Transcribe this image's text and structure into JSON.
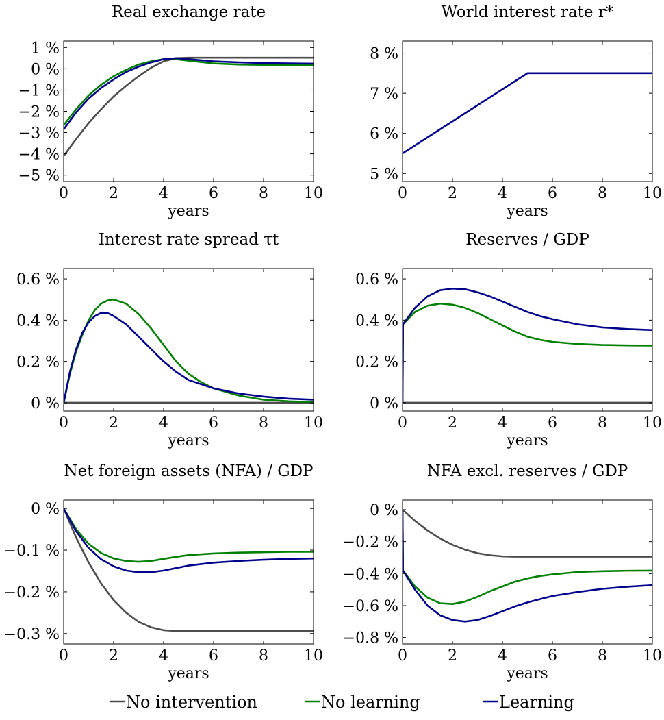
{
  "chart_data": [
    {
      "type": "line",
      "title": "Real exchange rate",
      "xlabel": "years",
      "ylabel": "",
      "xlim": [
        0,
        10
      ],
      "ylim": [
        -5.3,
        1.3
      ],
      "xticks": [
        "0",
        "2",
        "4",
        "6",
        "8",
        "10"
      ],
      "yticks": [
        {
          "v": 1,
          "label": "1 %"
        },
        {
          "v": 0,
          "label": "0 %"
        },
        {
          "v": -1,
          "label": "−1 %"
        },
        {
          "v": -2,
          "label": "−2 %"
        },
        {
          "v": -3,
          "label": "−3 %"
        },
        {
          "v": -4,
          "label": "−4 %"
        },
        {
          "v": -5,
          "label": "−5 %"
        }
      ],
      "series": [
        {
          "key": "none",
          "color": "#4d4d4d",
          "x": [
            0,
            0.5,
            1,
            1.5,
            2,
            2.5,
            3,
            3.5,
            4,
            4.5,
            5,
            6,
            7,
            8,
            9,
            10
          ],
          "y": [
            -4.1,
            -3.3,
            -2.55,
            -1.9,
            -1.3,
            -0.8,
            -0.35,
            0.05,
            0.35,
            0.5,
            0.52,
            0.52,
            0.52,
            0.52,
            0.52,
            0.52
          ]
        },
        {
          "key": "nolearn",
          "color": "#008000",
          "x": [
            0,
            0.5,
            1,
            1.5,
            2,
            2.5,
            3,
            3.5,
            4,
            4.5,
            5,
            6,
            7,
            8,
            9,
            10
          ],
          "y": [
            -2.65,
            -1.9,
            -1.25,
            -0.75,
            -0.35,
            -0.05,
            0.2,
            0.35,
            0.45,
            0.45,
            0.38,
            0.25,
            0.2,
            0.18,
            0.17,
            0.17
          ]
        },
        {
          "key": "learn",
          "color": "#00008b",
          "x": [
            0,
            0.5,
            1,
            1.5,
            2,
            2.5,
            3,
            3.5,
            4,
            4.5,
            5,
            6,
            7,
            8,
            9,
            10
          ],
          "y": [
            -2.85,
            -2.05,
            -1.4,
            -0.9,
            -0.5,
            -0.15,
            0.1,
            0.3,
            0.45,
            0.5,
            0.45,
            0.35,
            0.3,
            0.27,
            0.25,
            0.24
          ]
        }
      ]
    },
    {
      "type": "line",
      "title": "World interest rate r*",
      "xlabel": "years",
      "ylabel": "",
      "xlim": [
        0,
        10
      ],
      "ylim": [
        4.8,
        8.3
      ],
      "xticks": [
        "0",
        "2",
        "4",
        "6",
        "8",
        "10"
      ],
      "yticks": [
        {
          "v": 8,
          "label": "8 %"
        },
        {
          "v": 7,
          "label": "7 %"
        },
        {
          "v": 6,
          "label": "6 %"
        },
        {
          "v": 5,
          "label": "5 %"
        }
      ],
      "series": [
        {
          "key": "learn",
          "color": "#00008b",
          "x": [
            0,
            5,
            10
          ],
          "y": [
            5.5,
            7.5,
            7.5
          ]
        }
      ]
    },
    {
      "type": "line",
      "title": "Interest rate spread τt",
      "xlabel": "years",
      "ylabel": "",
      "xlim": [
        0,
        10
      ],
      "ylim": [
        -0.04,
        0.65
      ],
      "xticks": [
        "0",
        "2",
        "4",
        "6",
        "8",
        "10"
      ],
      "yticks": [
        {
          "v": 0.6,
          "label": "0.6 %"
        },
        {
          "v": 0.4,
          "label": "0.4 %"
        },
        {
          "v": 0.2,
          "label": "0.2 %"
        },
        {
          "v": 0,
          "label": "0 %"
        }
      ],
      "series": [
        {
          "key": "none",
          "color": "#4d4d4d",
          "x": [
            0,
            10
          ],
          "y": [
            0,
            0
          ]
        },
        {
          "key": "nolearn",
          "color": "#008000",
          "x": [
            0,
            0.25,
            0.5,
            0.75,
            1,
            1.25,
            1.5,
            1.75,
            2,
            2.5,
            3,
            3.5,
            4,
            4.5,
            5,
            5.5,
            6,
            7,
            8,
            9,
            10
          ],
          "y": [
            0,
            0.14,
            0.25,
            0.33,
            0.4,
            0.45,
            0.48,
            0.495,
            0.5,
            0.48,
            0.43,
            0.36,
            0.28,
            0.2,
            0.14,
            0.1,
            0.07,
            0.035,
            0.015,
            0.007,
            0.003
          ]
        },
        {
          "key": "learn",
          "color": "#00008b",
          "x": [
            0,
            0.25,
            0.5,
            0.75,
            1,
            1.25,
            1.5,
            1.75,
            2,
            2.5,
            3,
            3.5,
            4,
            4.5,
            5,
            5.5,
            6,
            7,
            8,
            9,
            10
          ],
          "y": [
            0,
            0.15,
            0.26,
            0.34,
            0.39,
            0.42,
            0.435,
            0.435,
            0.42,
            0.38,
            0.32,
            0.26,
            0.2,
            0.15,
            0.11,
            0.09,
            0.07,
            0.045,
            0.03,
            0.02,
            0.015
          ]
        }
      ]
    },
    {
      "type": "line",
      "title": "Reserves / GDP",
      "xlabel": "years",
      "ylabel": "",
      "xlim": [
        0,
        10
      ],
      "ylim": [
        -0.04,
        0.65
      ],
      "xticks": [
        "0",
        "2",
        "4",
        "6",
        "8",
        "10"
      ],
      "yticks": [
        {
          "v": 0.6,
          "label": "0.6 %"
        },
        {
          "v": 0.4,
          "label": "0.4 %"
        },
        {
          "v": 0.2,
          "label": "0.2 %"
        },
        {
          "v": 0,
          "label": "0 %"
        }
      ],
      "series": [
        {
          "key": "none",
          "color": "#4d4d4d",
          "x": [
            0,
            10
          ],
          "y": [
            0,
            0
          ]
        },
        {
          "key": "nolearn",
          "color": "#008000",
          "x": [
            0,
            0.02,
            0.5,
            1,
            1.5,
            2,
            2.5,
            3,
            3.5,
            4,
            4.5,
            5,
            5.5,
            6,
            7,
            8,
            9,
            10
          ],
          "y": [
            0,
            0.38,
            0.44,
            0.47,
            0.48,
            0.475,
            0.46,
            0.435,
            0.405,
            0.375,
            0.345,
            0.32,
            0.305,
            0.295,
            0.285,
            0.28,
            0.278,
            0.277
          ]
        },
        {
          "key": "learn",
          "color": "#00008b",
          "x": [
            0,
            0.02,
            0.5,
            1,
            1.5,
            2,
            2.5,
            3,
            3.5,
            4,
            4.5,
            5,
            5.5,
            6,
            7,
            8,
            9,
            10
          ],
          "y": [
            0,
            0.38,
            0.46,
            0.515,
            0.545,
            0.553,
            0.55,
            0.535,
            0.515,
            0.49,
            0.465,
            0.44,
            0.42,
            0.405,
            0.38,
            0.365,
            0.357,
            0.352
          ]
        }
      ]
    },
    {
      "type": "line",
      "title": "Net foreign assets (NFA) / GDP",
      "xlabel": "years",
      "ylabel": "",
      "xlim": [
        0,
        10
      ],
      "ylim": [
        -0.325,
        0.02
      ],
      "xticks": [
        "0",
        "2",
        "4",
        "6",
        "8",
        "10"
      ],
      "yticks": [
        {
          "v": 0,
          "label": "0 %"
        },
        {
          "v": -0.1,
          "label": "−0.1 %"
        },
        {
          "v": -0.2,
          "label": "−0.2 %"
        },
        {
          "v": -0.3,
          "label": "−0.3 %"
        }
      ],
      "series": [
        {
          "key": "none",
          "color": "#4d4d4d",
          "x": [
            0,
            0.5,
            1,
            1.5,
            2,
            2.5,
            3,
            3.5,
            4,
            4.5,
            5,
            6,
            7,
            8,
            9,
            10
          ],
          "y": [
            0,
            -0.07,
            -0.13,
            -0.18,
            -0.22,
            -0.25,
            -0.272,
            -0.285,
            -0.292,
            -0.294,
            -0.294,
            -0.294,
            -0.294,
            -0.294,
            -0.294,
            -0.294
          ]
        },
        {
          "key": "nolearn",
          "color": "#008000",
          "x": [
            0,
            0.5,
            1,
            1.5,
            2,
            2.5,
            3,
            3.5,
            4,
            4.5,
            5,
            6,
            7,
            8,
            9,
            10
          ],
          "y": [
            0,
            -0.05,
            -0.085,
            -0.107,
            -0.12,
            -0.126,
            -0.128,
            -0.126,
            -0.121,
            -0.116,
            -0.112,
            -0.108,
            -0.106,
            -0.105,
            -0.104,
            -0.104
          ]
        },
        {
          "key": "learn",
          "color": "#00008b",
          "x": [
            0,
            0.5,
            1,
            1.5,
            2,
            2.5,
            3,
            3.5,
            4,
            4.5,
            5,
            6,
            7,
            8,
            9,
            10
          ],
          "y": [
            0,
            -0.055,
            -0.095,
            -0.122,
            -0.139,
            -0.149,
            -0.153,
            -0.153,
            -0.149,
            -0.143,
            -0.137,
            -0.13,
            -0.126,
            -0.123,
            -0.121,
            -0.12
          ]
        }
      ]
    },
    {
      "type": "line",
      "title": "NFA excl. reserves / GDP",
      "xlabel": "years",
      "ylabel": "",
      "xlim": [
        0,
        10
      ],
      "ylim": [
        -0.84,
        0.06
      ],
      "xticks": [
        "0",
        "2",
        "4",
        "6",
        "8",
        "10"
      ],
      "yticks": [
        {
          "v": 0,
          "label": "0 %"
        },
        {
          "v": -0.2,
          "label": "−0.2 %"
        },
        {
          "v": -0.4,
          "label": "−0.4 %"
        },
        {
          "v": -0.6,
          "label": "−0.6 %"
        },
        {
          "v": -0.8,
          "label": "−0.8 %"
        }
      ],
      "series": [
        {
          "key": "none",
          "color": "#4d4d4d",
          "x": [
            0,
            0.5,
            1,
            1.5,
            2,
            2.5,
            3,
            3.5,
            4,
            4.5,
            5,
            6,
            7,
            8,
            9,
            10
          ],
          "y": [
            0,
            -0.07,
            -0.13,
            -0.18,
            -0.22,
            -0.25,
            -0.272,
            -0.285,
            -0.292,
            -0.294,
            -0.294,
            -0.294,
            -0.294,
            -0.294,
            -0.294,
            -0.294
          ]
        },
        {
          "key": "nolearn",
          "color": "#008000",
          "x": [
            0,
            0.02,
            0.5,
            1,
            1.5,
            2,
            2.5,
            3,
            3.5,
            4,
            4.5,
            5,
            5.5,
            6,
            7,
            8,
            9,
            10
          ],
          "y": [
            0,
            -0.38,
            -0.48,
            -0.55,
            -0.585,
            -0.59,
            -0.575,
            -0.545,
            -0.51,
            -0.48,
            -0.45,
            -0.43,
            -0.415,
            -0.405,
            -0.39,
            -0.385,
            -0.382,
            -0.381
          ]
        },
        {
          "key": "learn",
          "color": "#00008b",
          "x": [
            0,
            0.02,
            0.5,
            1,
            1.5,
            2,
            2.5,
            3,
            3.5,
            4,
            4.5,
            5,
            5.5,
            6,
            7,
            8,
            9,
            10
          ],
          "y": [
            0,
            -0.38,
            -0.5,
            -0.6,
            -0.66,
            -0.69,
            -0.7,
            -0.69,
            -0.665,
            -0.635,
            -0.605,
            -0.58,
            -0.56,
            -0.54,
            -0.515,
            -0.495,
            -0.482,
            -0.472
          ]
        }
      ]
    }
  ],
  "legend": {
    "placement": "bottom",
    "items": [
      {
        "key": "none",
        "label": "No intervention",
        "color": "#4d4d4d"
      },
      {
        "key": "nolearn",
        "label": "No learning",
        "color": "#008000"
      },
      {
        "key": "learn",
        "label": "Learning",
        "color": "#00008b"
      }
    ]
  }
}
